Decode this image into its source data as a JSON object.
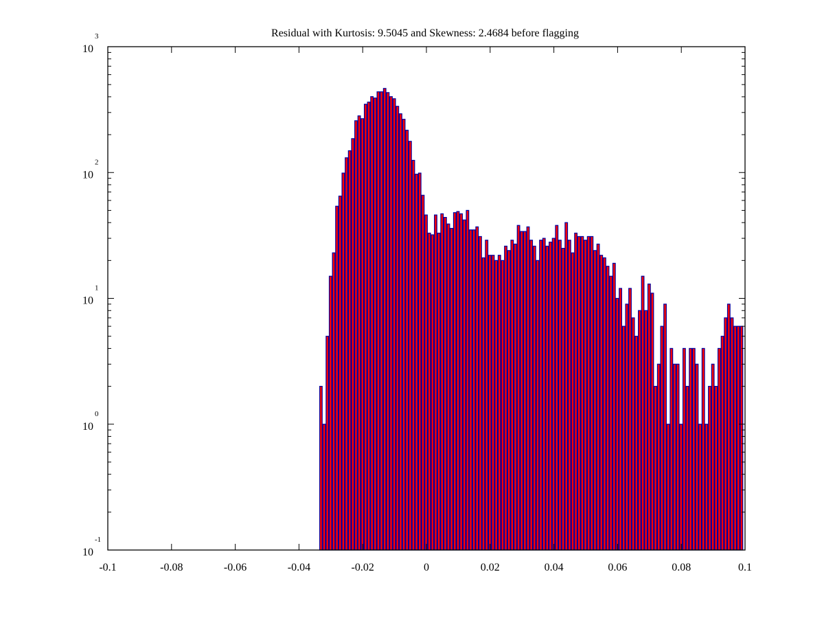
{
  "chart_data": {
    "type": "bar",
    "subtype": "histogram",
    "title": "Residual with Kurtosis: 9.5045 and Skewness: 2.4684 before flagging",
    "xlabel": "",
    "ylabel": "",
    "xlim": [
      -0.1,
      0.1
    ],
    "ylim": [
      0.1,
      1000
    ],
    "yscale": "log",
    "x_ticks": [
      "-0.1",
      "-0.08",
      "-0.06",
      "-0.04",
      "-0.02",
      "0",
      "0.02",
      "0.04",
      "0.06",
      "0.08",
      "0.1"
    ],
    "x_tick_values": [
      -0.1,
      -0.08,
      -0.06,
      -0.04,
      -0.02,
      0,
      0.02,
      0.04,
      0.06,
      0.08,
      0.1
    ],
    "y_ticks": [
      {
        "base": "10",
        "exp": "-1",
        "value": 0.1
      },
      {
        "base": "10",
        "exp": "0",
        "value": 1
      },
      {
        "base": "10",
        "exp": "1",
        "value": 10
      },
      {
        "base": "10",
        "exp": "2",
        "value": 100
      },
      {
        "base": "10",
        "exp": "3",
        "value": 1000
      }
    ],
    "grid": false,
    "bin_start": -0.0336,
    "bin_width": 0.001,
    "values": [
      2,
      1,
      5,
      15,
      23,
      54,
      65,
      99,
      131,
      149,
      186,
      258,
      282,
      268,
      349,
      363,
      401,
      391,
      438,
      438,
      466,
      432,
      401,
      386,
      336,
      293,
      265,
      217,
      177,
      125,
      97,
      99,
      66,
      46,
      33,
      32,
      46,
      33,
      47,
      44,
      39,
      36,
      48,
      49,
      47,
      42,
      50,
      35,
      35,
      37,
      31,
      21,
      29,
      22,
      22,
      20,
      22,
      20,
      26,
      24,
      29,
      27,
      38,
      34,
      34,
      37,
      29,
      26,
      20,
      29,
      30,
      26,
      28,
      30,
      38,
      29,
      25,
      40,
      29,
      23,
      33,
      31,
      31,
      29,
      31,
      31,
      24,
      27,
      22,
      21,
      18,
      15,
      19,
      10,
      12,
      6,
      9,
      12,
      7,
      5,
      8,
      15,
      8,
      13,
      11,
      2,
      3,
      6,
      9,
      1,
      4,
      3,
      3,
      1,
      4,
      2,
      4,
      4,
      3,
      1,
      4,
      1,
      2,
      3,
      2,
      4,
      5,
      7,
      9,
      7,
      6,
      6,
      6
    ],
    "colors": {
      "bar_fill": "#ff0000",
      "bar_edge": "#0000a0",
      "axis": "#000000"
    }
  }
}
